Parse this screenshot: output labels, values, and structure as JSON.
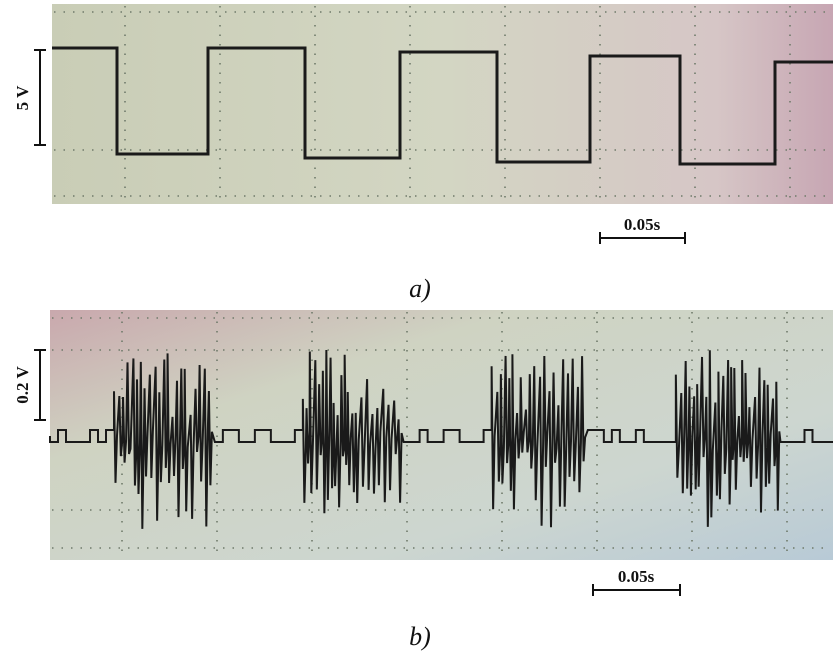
{
  "panels": [
    {
      "scale_label": "5 V",
      "time_label": "0.05s",
      "caption": "a)"
    },
    {
      "scale_label": "0.2 V",
      "time_label": "0.05s",
      "caption": "b)"
    }
  ]
}
